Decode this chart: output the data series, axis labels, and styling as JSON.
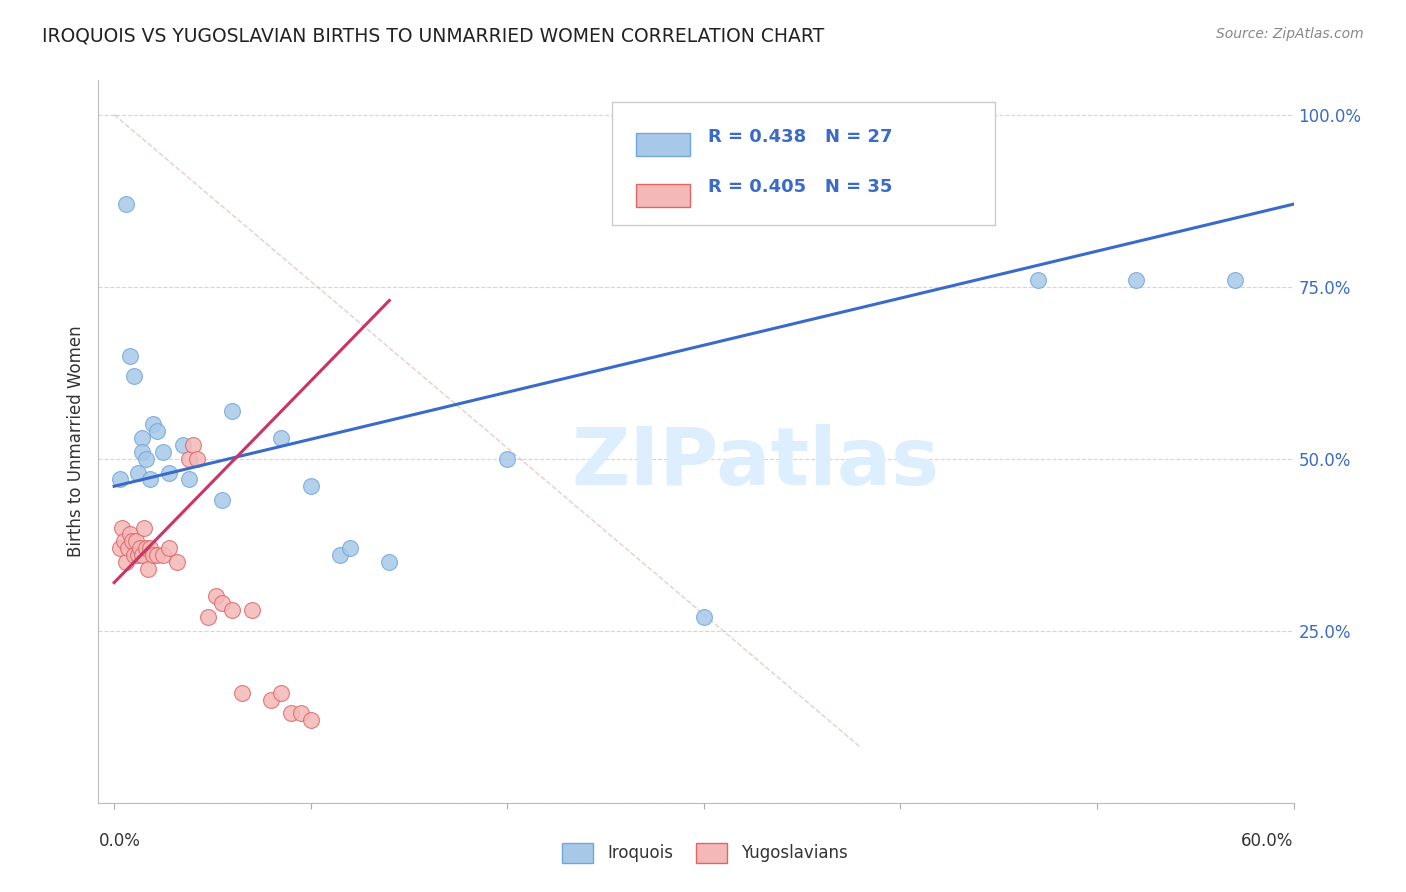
{
  "title": "IROQUOIS VS YUGOSLAVIAN BIRTHS TO UNMARRIED WOMEN CORRELATION CHART",
  "source": "Source: ZipAtlas.com",
  "ylabel": "Births to Unmarried Women",
  "x_range": [
    0.0,
    0.6
  ],
  "y_range": [
    0.0,
    1.05
  ],
  "y_ticks": [
    0.0,
    0.25,
    0.5,
    0.75,
    1.0
  ],
  "y_tick_labels": [
    "",
    "25.0%",
    "50.0%",
    "75.0%",
    "100.0%"
  ],
  "legend_label1": "Iroquois",
  "legend_label2": "Yugoslavians",
  "iroquois_scatter_color": "#a8c8e8",
  "iroquois_edge_color": "#6fa8dc",
  "yugoslavian_scatter_color": "#f4b8b8",
  "yugoslavian_edge_color": "#e06666",
  "iroquois_trend_color": "#3a6bc8",
  "yugoslavian_trend_color": "#cc3366",
  "ref_line_color": "#ddaaaa",
  "watermark_color": "#ddeeff",
  "iroquois_x": [
    0.003,
    0.006,
    0.008,
    0.01,
    0.012,
    0.014,
    0.014,
    0.016,
    0.018,
    0.02,
    0.022,
    0.025,
    0.028,
    0.035,
    0.038,
    0.055,
    0.06,
    0.085,
    0.1,
    0.115,
    0.12,
    0.14,
    0.3,
    0.47,
    0.52,
    0.57,
    0.2
  ],
  "iroquois_y": [
    0.47,
    0.87,
    0.65,
    0.62,
    0.48,
    0.53,
    0.51,
    0.5,
    0.47,
    0.55,
    0.54,
    0.51,
    0.48,
    0.52,
    0.47,
    0.44,
    0.57,
    0.53,
    0.46,
    0.36,
    0.37,
    0.35,
    0.27,
    0.76,
    0.76,
    0.76,
    0.5
  ],
  "yugoslavian_x": [
    0.003,
    0.004,
    0.005,
    0.006,
    0.007,
    0.008,
    0.009,
    0.01,
    0.011,
    0.012,
    0.013,
    0.014,
    0.015,
    0.016,
    0.017,
    0.018,
    0.02,
    0.022,
    0.025,
    0.028,
    0.032,
    0.038,
    0.04,
    0.042,
    0.048,
    0.052,
    0.055,
    0.06,
    0.065,
    0.07,
    0.08,
    0.085,
    0.09,
    0.095,
    0.1
  ],
  "yugoslavian_y": [
    0.37,
    0.4,
    0.38,
    0.35,
    0.37,
    0.39,
    0.38,
    0.36,
    0.38,
    0.36,
    0.37,
    0.36,
    0.4,
    0.37,
    0.34,
    0.37,
    0.36,
    0.36,
    0.36,
    0.37,
    0.35,
    0.5,
    0.52,
    0.5,
    0.27,
    0.3,
    0.29,
    0.28,
    0.16,
    0.28,
    0.15,
    0.16,
    0.13,
    0.13,
    0.12
  ],
  "iroquois_trend": [
    0.46,
    0.87
  ],
  "iroquois_trend_x": [
    0.0,
    0.6
  ],
  "yugoslavian_trend": [
    0.32,
    0.73
  ],
  "yugoslavian_trend_x": [
    0.0,
    0.14
  ],
  "ref_line_x": [
    0.0,
    0.38
  ],
  "ref_line_y": [
    1.0,
    0.08
  ]
}
